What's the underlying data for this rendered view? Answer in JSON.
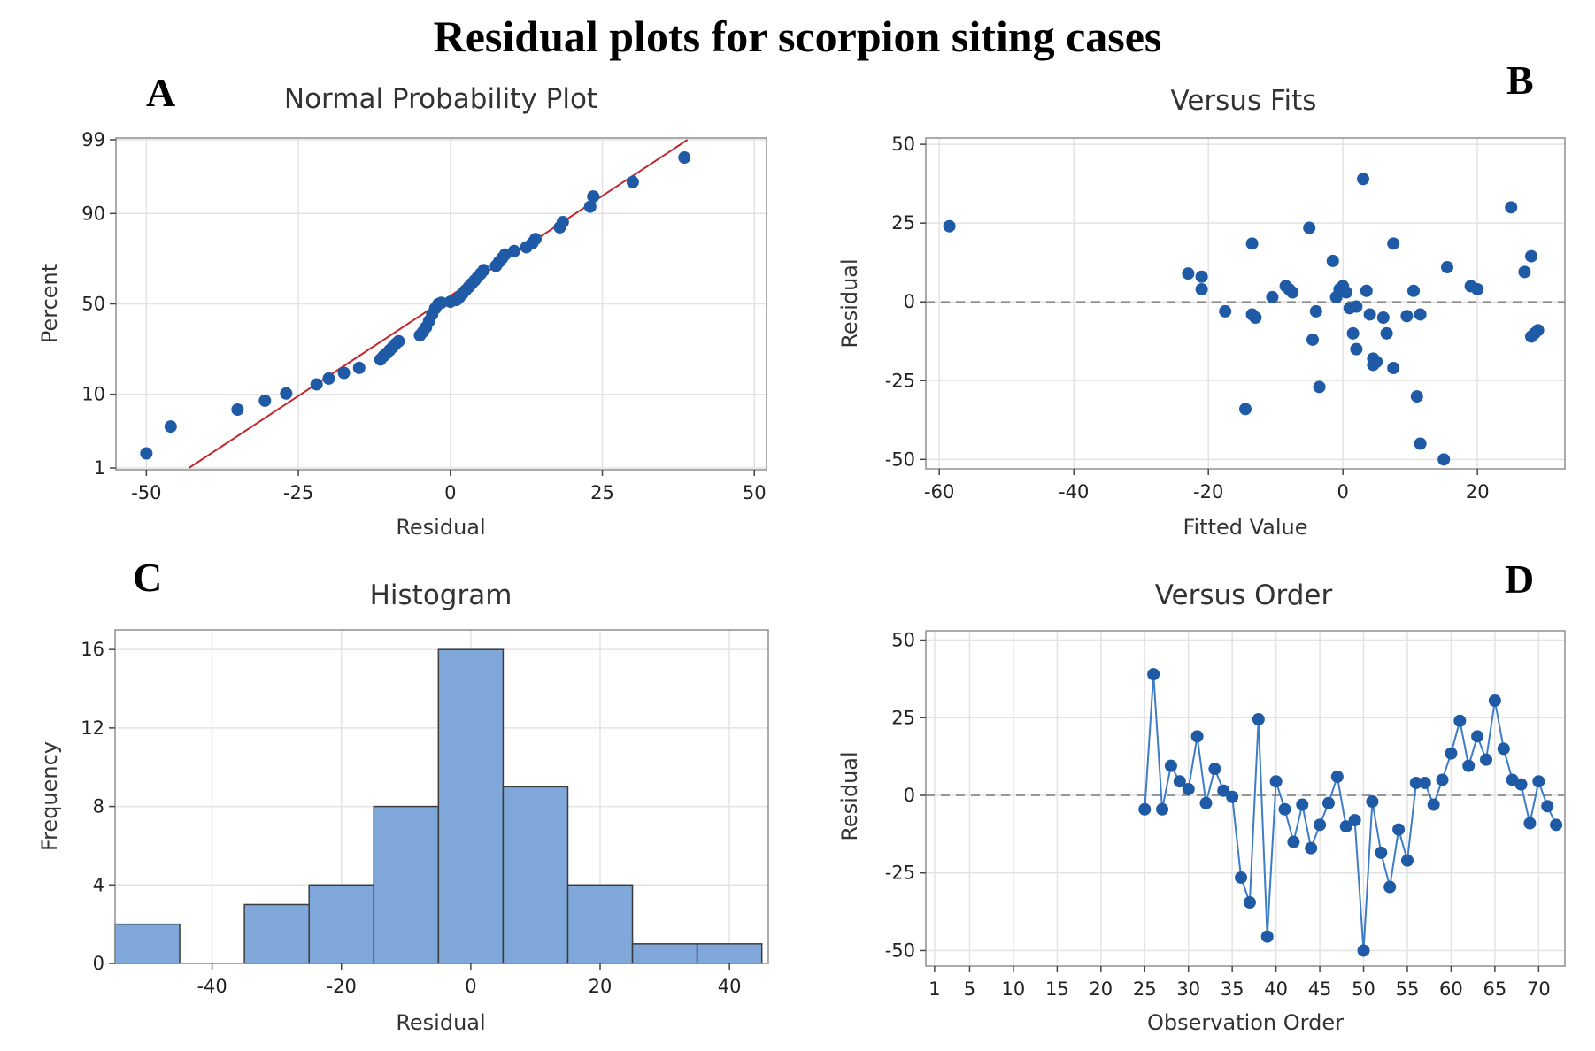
{
  "figure": {
    "title": "Residual plots for scorpion siting cases"
  },
  "chart_data": [
    {
      "id": "A",
      "type": "scatter",
      "title": "Normal Probability Plot",
      "xlabel": "Residual",
      "ylabel": "Percent",
      "xlim": [
        -55,
        52
      ],
      "xticks": [
        -50,
        -25,
        0,
        25,
        50
      ],
      "yticks": [
        1,
        10,
        50,
        90,
        99
      ],
      "y_scale": "normal-probability",
      "grid": true,
      "fit_line": {
        "x": [
          -43,
          39
        ],
        "y": [
          1,
          99
        ]
      },
      "points": [
        {
          "x": -50,
          "y": 1.7
        },
        {
          "x": -46,
          "y": 4.1
        },
        {
          "x": -35,
          "y": 6.7
        },
        {
          "x": -30.5,
          "y": 8.5
        },
        {
          "x": -27,
          "y": 10.2
        },
        {
          "x": -22,
          "y": 12.7
        },
        {
          "x": -20,
          "y": 14.5
        },
        {
          "x": -17.5,
          "y": 16.4
        },
        {
          "x": -15,
          "y": 18.2
        },
        {
          "x": -11.5,
          "y": 21.5
        },
        {
          "x": -11,
          "y": 22.9
        },
        {
          "x": -10.5,
          "y": 24.1
        },
        {
          "x": -10,
          "y": 25.5
        },
        {
          "x": -9.5,
          "y": 26.9
        },
        {
          "x": -9,
          "y": 28.5
        },
        {
          "x": -8.5,
          "y": 29.8
        },
        {
          "x": -5,
          "y": 32.8
        },
        {
          "x": -4.5,
          "y": 34.6
        },
        {
          "x": -4,
          "y": 37
        },
        {
          "x": -3.5,
          "y": 40.4
        },
        {
          "x": -3,
          "y": 44
        },
        {
          "x": -2.5,
          "y": 47.4
        },
        {
          "x": -2,
          "y": 49.8
        },
        {
          "x": -1.5,
          "y": 50.6
        },
        {
          "x": 0,
          "y": 51.2
        },
        {
          "x": 1,
          "y": 52.2
        },
        {
          "x": 1.5,
          "y": 53.8
        },
        {
          "x": 2,
          "y": 55.7
        },
        {
          "x": 2.5,
          "y": 57.6
        },
        {
          "x": 3,
          "y": 59.4
        },
        {
          "x": 3.5,
          "y": 61.2
        },
        {
          "x": 4,
          "y": 63
        },
        {
          "x": 4.5,
          "y": 64.8
        },
        {
          "x": 5,
          "y": 66.6
        },
        {
          "x": 5.5,
          "y": 68.4
        },
        {
          "x": 7.5,
          "y": 70.5
        },
        {
          "x": 8,
          "y": 72.4
        },
        {
          "x": 8.5,
          "y": 74.1
        },
        {
          "x": 9,
          "y": 75.8
        },
        {
          "x": 10.5,
          "y": 77.3
        },
        {
          "x": 12.5,
          "y": 78.9
        },
        {
          "x": 13.5,
          "y": 80.6
        },
        {
          "x": 14,
          "y": 82.1
        },
        {
          "x": 18,
          "y": 86.1
        },
        {
          "x": 18.5,
          "y": 87.7
        },
        {
          "x": 23,
          "y": 91.6
        },
        {
          "x": 23.5,
          "y": 93.6
        },
        {
          "x": 30,
          "y": 95.8
        },
        {
          "x": 38.5,
          "y": 98.1
        }
      ]
    },
    {
      "id": "B",
      "type": "scatter",
      "title": "Versus Fits",
      "xlabel": "Fitted Value",
      "ylabel": "Residual",
      "xlim": [
        -62,
        33
      ],
      "ylim": [
        -53,
        52
      ],
      "xticks": [
        -60,
        -40,
        -20,
        0,
        20
      ],
      "yticks": [
        -50,
        -25,
        0,
        25,
        50
      ],
      "reference_line_y": 0,
      "grid": true,
      "points": [
        {
          "x": -58.5,
          "y": 24
        },
        {
          "x": -23,
          "y": 9
        },
        {
          "x": -21,
          "y": 8
        },
        {
          "x": -21,
          "y": 4
        },
        {
          "x": -17.5,
          "y": -3
        },
        {
          "x": -14.5,
          "y": -34
        },
        {
          "x": -13.5,
          "y": 18.5
        },
        {
          "x": -13.5,
          "y": -4
        },
        {
          "x": -13,
          "y": -5
        },
        {
          "x": -10.5,
          "y": 1.5
        },
        {
          "x": -8.5,
          "y": 5
        },
        {
          "x": -8,
          "y": 4
        },
        {
          "x": -7.5,
          "y": 3
        },
        {
          "x": -5,
          "y": 23.5
        },
        {
          "x": -4.5,
          "y": -12
        },
        {
          "x": -4,
          "y": -3
        },
        {
          "x": -3.5,
          "y": -27
        },
        {
          "x": -1.5,
          "y": 13
        },
        {
          "x": -1,
          "y": 1.5
        },
        {
          "x": -0.5,
          "y": 4
        },
        {
          "x": 0,
          "y": 5
        },
        {
          "x": 0.5,
          "y": 3
        },
        {
          "x": 1,
          "y": -2
        },
        {
          "x": 1.5,
          "y": -10
        },
        {
          "x": 2,
          "y": -1.5
        },
        {
          "x": 2,
          "y": -15
        },
        {
          "x": 3,
          "y": 39
        },
        {
          "x": 3.5,
          "y": 3.5
        },
        {
          "x": 4,
          "y": -4
        },
        {
          "x": 4.5,
          "y": -20
        },
        {
          "x": 4.5,
          "y": -18
        },
        {
          "x": 5,
          "y": -19
        },
        {
          "x": 6,
          "y": -5
        },
        {
          "x": 6.5,
          "y": -10
        },
        {
          "x": 7.5,
          "y": -21
        },
        {
          "x": 7.5,
          "y": 18.5
        },
        {
          "x": 9.5,
          "y": -4.5
        },
        {
          "x": 10.5,
          "y": 3.5
        },
        {
          "x": 11,
          "y": -30
        },
        {
          "x": 11.5,
          "y": -45
        },
        {
          "x": 11.5,
          "y": -4
        },
        {
          "x": 15,
          "y": -50
        },
        {
          "x": 15.5,
          "y": 11
        },
        {
          "x": 19,
          "y": 5
        },
        {
          "x": 20,
          "y": 4
        },
        {
          "x": 25,
          "y": 30
        },
        {
          "x": 27,
          "y": 9.5
        },
        {
          "x": 28,
          "y": 14.5
        },
        {
          "x": 28,
          "y": -11
        },
        {
          "x": 28.5,
          "y": -10
        },
        {
          "x": 29,
          "y": -9
        }
      ]
    },
    {
      "id": "C",
      "type": "bar",
      "title": "Histogram",
      "xlabel": "Residual",
      "ylabel": "Frequency",
      "xlim": [
        -55,
        46
      ],
      "ylim": [
        0,
        17
      ],
      "xticks": [
        -40,
        -20,
        0,
        20,
        40
      ],
      "yticks": [
        0,
        4,
        8,
        12,
        16
      ],
      "bin_width": 10,
      "grid": true,
      "bins": [
        {
          "center": -50,
          "count": 2
        },
        {
          "center": -40,
          "count": 0
        },
        {
          "center": -30,
          "count": 3
        },
        {
          "center": -20,
          "count": 4
        },
        {
          "center": -10,
          "count": 8
        },
        {
          "center": 0,
          "count": 16
        },
        {
          "center": 10,
          "count": 9
        },
        {
          "center": 20,
          "count": 4
        },
        {
          "center": 30,
          "count": 1
        },
        {
          "center": 40,
          "count": 1
        }
      ]
    },
    {
      "id": "D",
      "type": "line",
      "title": "Versus Order",
      "xlabel": "Observation Order",
      "ylabel": "Residual",
      "xlim": [
        0,
        73
      ],
      "ylim": [
        -55,
        53
      ],
      "xticks": [
        1,
        5,
        10,
        15,
        20,
        25,
        30,
        35,
        40,
        45,
        50,
        55,
        60,
        65,
        70
      ],
      "yticks": [
        -50,
        -25,
        0,
        25,
        50
      ],
      "reference_line_y": 0,
      "grid": true,
      "x": [
        25,
        26,
        27,
        28,
        29,
        30,
        31,
        32,
        33,
        34,
        35,
        36,
        37,
        38,
        39,
        40,
        41,
        42,
        43,
        44,
        45,
        46,
        47,
        48,
        49,
        50,
        51,
        52,
        53,
        54,
        55,
        56,
        57,
        58,
        59,
        60,
        61,
        62,
        63,
        64,
        65,
        66,
        67,
        68,
        69,
        70,
        71,
        72
      ],
      "y": [
        -4.5,
        39,
        -4.5,
        9.5,
        4.5,
        2,
        19,
        -2.5,
        8.5,
        1.5,
        -0.5,
        -26.5,
        -34.5,
        24.5,
        -45.5,
        4.5,
        -4.5,
        -15,
        -3,
        -17,
        -9.5,
        -2.5,
        6,
        -10,
        -8,
        -50,
        -2,
        -18.5,
        -29.5,
        -11,
        -21,
        4,
        4,
        -3,
        5,
        13.5,
        24,
        9.5,
        19,
        11.5,
        30.5,
        15,
        5,
        3.5,
        -9,
        4.5,
        -3.5,
        -9.5
      ]
    }
  ]
}
